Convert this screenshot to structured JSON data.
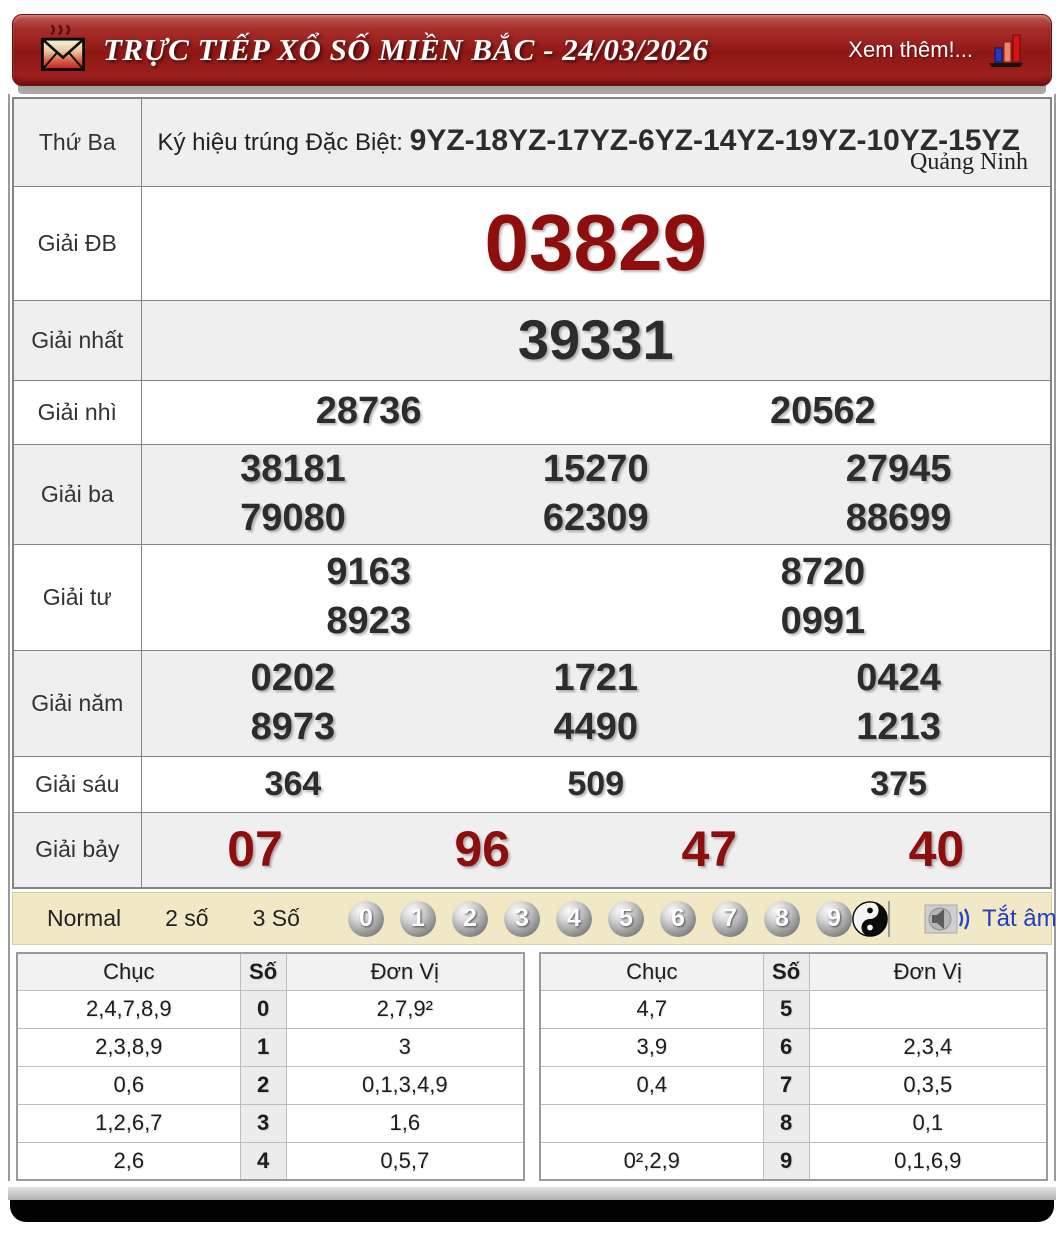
{
  "header": {
    "title": "TRỰC TIẾP XỔ SỐ MIỀN BẮC - 24/03/2026",
    "more_link": "Xem thêm!..."
  },
  "sign_row": {
    "day": "Thứ Ba",
    "label": "Ký hiệu trúng Đặc Biệt: ",
    "codes": "9YZ-18YZ-17YZ-6YZ-14YZ-19YZ-10YZ-15YZ",
    "province": "Quảng Ninh"
  },
  "prizes": [
    {
      "key": "db",
      "label": "Giải ĐB",
      "rows": [
        [
          "03829"
        ]
      ]
    },
    {
      "key": "nhat",
      "label": "Giải nhất",
      "rows": [
        [
          "39331"
        ]
      ]
    },
    {
      "key": "nhi",
      "label": "Giải nhì",
      "rows": [
        [
          "28736",
          "20562"
        ]
      ]
    },
    {
      "key": "ba",
      "label": "Giải ba",
      "rows": [
        [
          "38181",
          "15270",
          "27945"
        ],
        [
          "79080",
          "62309",
          "88699"
        ]
      ]
    },
    {
      "key": "tu",
      "label": "Giải tư",
      "rows": [
        [
          "9163",
          "8720"
        ],
        [
          "8923",
          "0991"
        ]
      ]
    },
    {
      "key": "nam",
      "label": "Giải năm",
      "rows": [
        [
          "0202",
          "1721",
          "0424"
        ],
        [
          "8973",
          "4490",
          "1213"
        ]
      ]
    },
    {
      "key": "sau",
      "label": "Giải sáu",
      "rows": [
        [
          "364",
          "509",
          "375"
        ]
      ]
    },
    {
      "key": "bay",
      "label": "Giải bảy",
      "rows": [
        [
          "07",
          "96",
          "47",
          "40"
        ]
      ]
    }
  ],
  "controls": {
    "modes": [
      "Normal",
      "2 số",
      "3 Số"
    ],
    "balls": [
      "0",
      "1",
      "2",
      "3",
      "4",
      "5",
      "6",
      "7",
      "8",
      "9"
    ],
    "mute_label": "Tắt âm"
  },
  "stats": {
    "headers": [
      "Chục",
      "Số",
      "Đơn Vị"
    ],
    "left": [
      {
        "chuc": "2,4,7,8,9",
        "so": "0",
        "donvi": "2,7,9²"
      },
      {
        "chuc": "2,3,8,9",
        "so": "1",
        "donvi": "3"
      },
      {
        "chuc": "0,6",
        "so": "2",
        "donvi": "0,1,3,4,9"
      },
      {
        "chuc": "1,2,6,7",
        "so": "3",
        "donvi": "1,6"
      },
      {
        "chuc": "2,6",
        "so": "4",
        "donvi": "0,5,7"
      }
    ],
    "right": [
      {
        "chuc": "4,7",
        "so": "5",
        "donvi": ""
      },
      {
        "chuc": "3,9",
        "so": "6",
        "donvi": "2,3,4"
      },
      {
        "chuc": "0,4",
        "so": "7",
        "donvi": "0,3,5"
      },
      {
        "chuc": "",
        "so": "8",
        "donvi": "0,1"
      },
      {
        "chuc": "0²,2,9",
        "so": "9",
        "donvi": "0,1,6,9"
      }
    ]
  }
}
